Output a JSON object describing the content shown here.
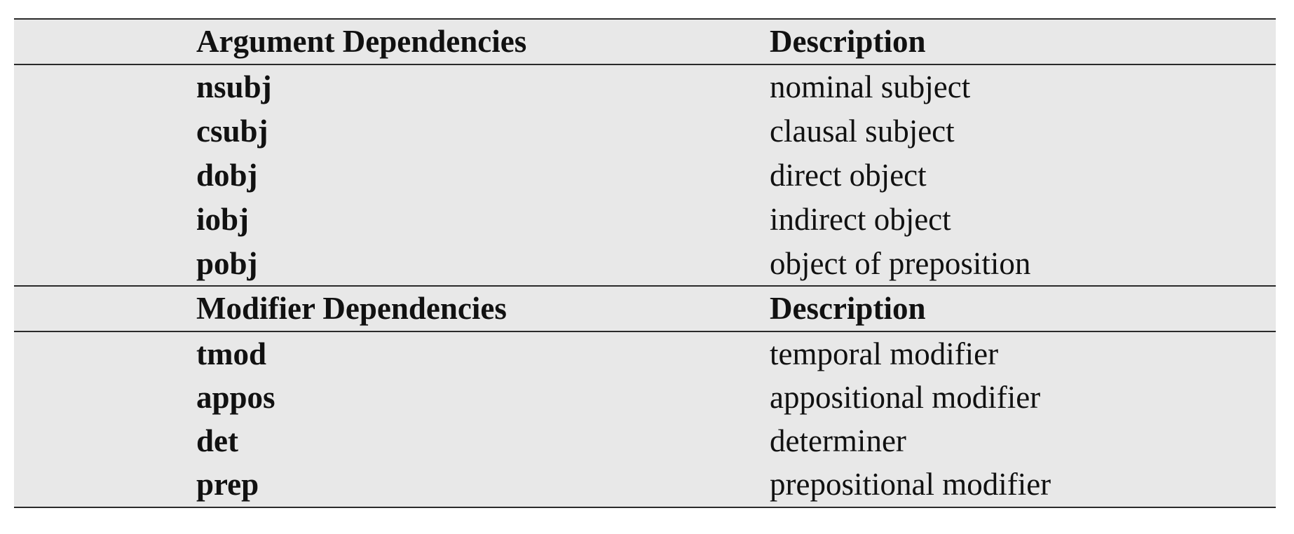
{
  "sections": [
    {
      "header": {
        "col1": "Argument Dependencies",
        "col2": "Description"
      },
      "rows": [
        {
          "name": "nsubj",
          "desc": "nominal subject"
        },
        {
          "name": "csubj",
          "desc": "clausal subject"
        },
        {
          "name": "dobj",
          "desc": "direct object"
        },
        {
          "name": "iobj",
          "desc": "indirect object"
        },
        {
          "name": "pobj",
          "desc": "object of preposition"
        }
      ]
    },
    {
      "header": {
        "col1": "Modifier Dependencies",
        "col2": "Description"
      },
      "rows": [
        {
          "name": "tmod",
          "desc": "temporal modifier"
        },
        {
          "name": "appos",
          "desc": "appositional modifier"
        },
        {
          "name": "det",
          "desc": "determiner"
        },
        {
          "name": "prep",
          "desc": "prepositional modifier"
        }
      ]
    }
  ]
}
